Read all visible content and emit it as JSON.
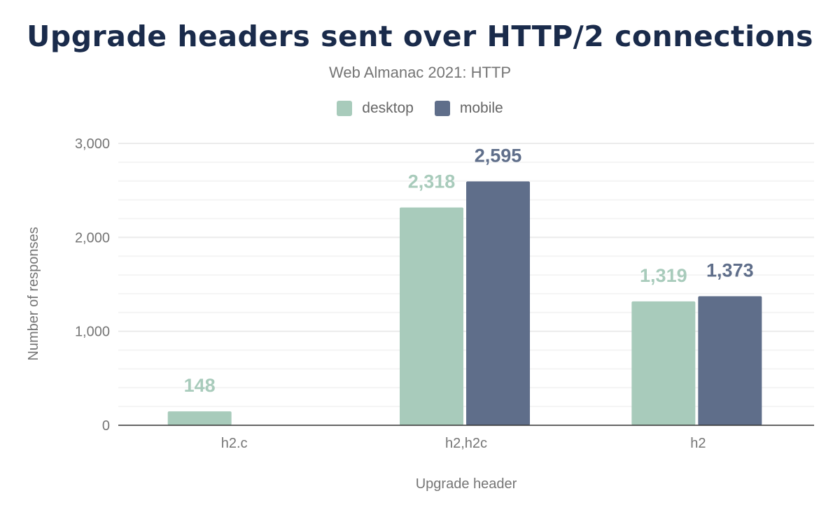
{
  "chart_data": {
    "type": "bar",
    "title": "Upgrade headers sent over HTTP/2 connections",
    "subtitle": "Web Almanac 2021: HTTP",
    "xlabel": "Upgrade header",
    "ylabel": "Number of responses",
    "categories": [
      "h2.c",
      "h2,h2c",
      "h2"
    ],
    "series": [
      {
        "name": "desktop",
        "color": "#a8cbbb",
        "values": [
          148,
          2318,
          1319
        ],
        "labels": [
          "148",
          "2,318",
          "1,319"
        ]
      },
      {
        "name": "mobile",
        "color": "#5f6e8a",
        "values": [
          null,
          2595,
          1373
        ],
        "labels": [
          "",
          "2,595",
          "1,373"
        ]
      }
    ],
    "ylim": [
      0,
      3000
    ],
    "yticks": [
      0,
      1000,
      2000,
      3000
    ],
    "ytick_labels": [
      "0",
      "1,000",
      "2,000",
      "3,000"
    ],
    "minor_grid_step": 200,
    "grid": true,
    "legend": "top-center"
  }
}
